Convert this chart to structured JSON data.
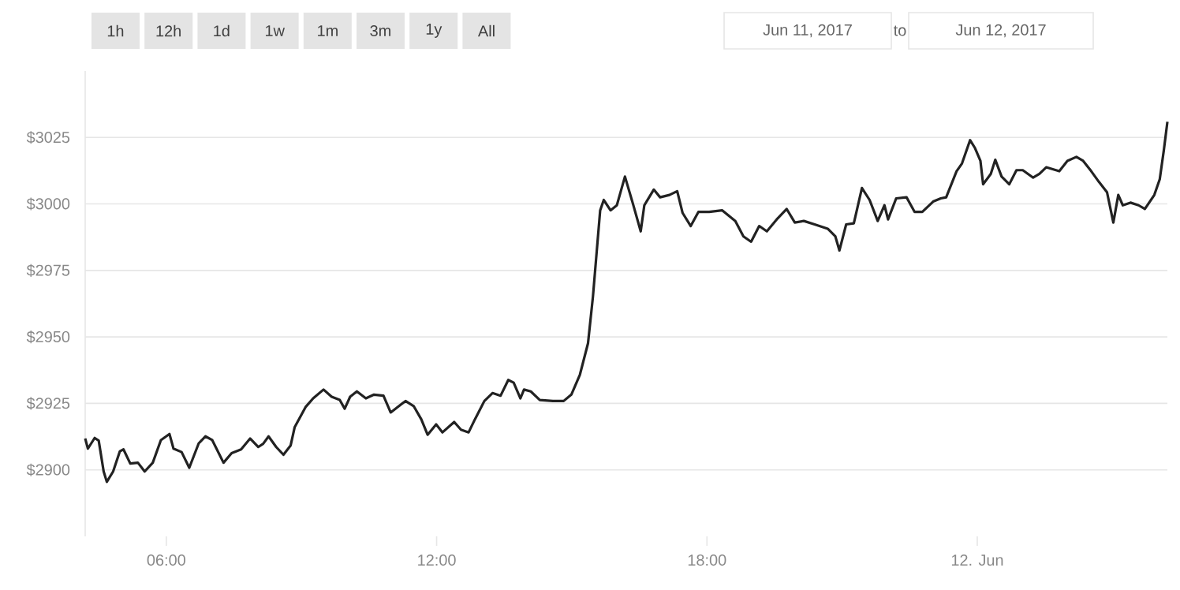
{
  "chart_data": {
    "type": "line",
    "color": "#222222",
    "x": [
      4.2,
      4.26,
      4.41,
      4.5,
      4.61,
      4.68,
      4.82,
      4.97,
      5.05,
      5.2,
      5.37,
      5.52,
      5.7,
      5.88,
      6.07,
      6.16,
      6.34,
      6.51,
      6.72,
      6.87,
      7.02,
      7.27,
      7.45,
      7.66,
      7.86,
      8.04,
      8.15,
      8.27,
      8.44,
      8.6,
      8.76,
      8.85,
      9.09,
      9.26,
      9.49,
      9.67,
      9.85,
      9.96,
      10.08,
      10.23,
      10.43,
      10.61,
      10.82,
      10.98,
      11.31,
      11.49,
      11.66,
      11.8,
      11.99,
      12.13,
      12.39,
      12.54,
      12.71,
      12.85,
      13.06,
      13.24,
      13.42,
      13.59,
      13.71,
      13.86,
      13.94,
      14.09,
      14.29,
      14.58,
      14.82,
      14.99,
      15.18,
      15.36,
      15.47,
      15.63,
      15.71,
      15.86,
      16.0,
      16.18,
      16.35,
      16.53,
      16.61,
      16.82,
      16.96,
      17.17,
      17.34,
      17.46,
      17.64,
      17.81,
      18.05,
      18.34,
      18.63,
      18.81,
      18.98,
      19.16,
      19.33,
      19.57,
      19.77,
      19.95,
      20.15,
      20.39,
      20.68,
      20.85,
      20.94,
      21.09,
      21.26,
      21.44,
      21.61,
      21.79,
      21.94,
      22.02,
      22.2,
      22.43,
      22.61,
      22.78,
      23.02,
      23.19,
      23.31,
      23.54,
      23.66,
      23.84,
      23.95,
      24.07,
      24.13,
      24.3,
      24.4,
      24.54,
      24.71,
      24.87,
      25.01,
      25.24,
      25.38,
      25.53,
      25.82,
      26.0,
      26.2,
      26.35,
      26.53,
      26.7,
      26.88,
      27.02,
      27.13,
      27.23,
      27.4,
      27.58,
      27.72,
      27.93,
      28.05,
      28.14,
      28.22
    ],
    "values": [
      2911.8,
      2908,
      2912,
      2911,
      2899.4,
      2895.5,
      2899.4,
      2907,
      2907.7,
      2902.4,
      2902.7,
      2899.4,
      2902.7,
      2911.2,
      2913.5,
      2908,
      2906.7,
      2900.8,
      2910,
      2912.6,
      2911.2,
      2902.7,
      2906.3,
      2907.7,
      2911.8,
      2908.6,
      2909.8,
      2912.6,
      2908.6,
      2905.7,
      2909.2,
      2916.1,
      2923.6,
      2926.9,
      2930.2,
      2927.5,
      2926.3,
      2923,
      2927.5,
      2929.5,
      2926.9,
      2928.3,
      2927.9,
      2921.6,
      2925.9,
      2924,
      2919,
      2913.2,
      2917.1,
      2914.1,
      2918,
      2915.1,
      2914.1,
      2919,
      2925.9,
      2928.9,
      2927.9,
      2933.8,
      2932.8,
      2926.9,
      2930.2,
      2929.5,
      2926.3,
      2925.9,
      2925.9,
      2928.3,
      2935.8,
      2947.6,
      2965.2,
      2997.6,
      3001.5,
      2997.6,
      2999.5,
      3010.3,
      3000.5,
      2989.7,
      2999.5,
      3005.4,
      3002.5,
      3003.4,
      3004.8,
      2996.6,
      2991.7,
      2997,
      2997,
      2997.6,
      2993.6,
      2987.8,
      2985.8,
      2991.7,
      2989.7,
      2994.6,
      2998.1,
      2993,
      2993.6,
      2992.3,
      2990.7,
      2987.8,
      2982.5,
      2992.3,
      2992.7,
      3006,
      3001.5,
      2993.6,
      2999.5,
      2994.2,
      3002.1,
      3002.5,
      2997,
      2997,
      3000.9,
      3002.1,
      3002.5,
      3012.3,
      3015.2,
      3024,
      3021,
      3016.2,
      3007.4,
      3011.3,
      3016.6,
      3010.3,
      3007.4,
      3012.7,
      3012.7,
      3009.9,
      3011.3,
      3013.8,
      3012.3,
      3016.2,
      3017.7,
      3016.2,
      3012.3,
      3008.3,
      3004.4,
      2993,
      3003.4,
      2999.5,
      3000.5,
      2999.5,
      2998.1,
      3003.4,
      3009.3,
      3020.1,
      3030.9
    ],
    "xlim": [
      4.2,
      28.22
    ],
    "ylim": [
      2875,
      3050
    ],
    "xticks": [
      {
        "value": 6,
        "label": "06:00"
      },
      {
        "value": 12,
        "label": "12:00"
      },
      {
        "value": 18,
        "label": "18:00"
      },
      {
        "value": 24,
        "label": "12. Jun"
      }
    ],
    "yticks": [
      {
        "value": 2900,
        "label": "$2900"
      },
      {
        "value": 2925,
        "label": "$2925"
      },
      {
        "value": 2950,
        "label": "$2950"
      },
      {
        "value": 2975,
        "label": "$2975"
      },
      {
        "value": 3000,
        "label": "$3000"
      },
      {
        "value": 3025,
        "label": "$3025"
      }
    ],
    "grid": "y",
    "marker": "none",
    "line_style": "solid",
    "annotations": [
      "1h",
      "12h",
      "1d",
      "1w",
      "1m",
      "3m",
      "1y",
      "All",
      "Jun 11, 2017",
      "to",
      "Jun 12, 2017"
    ]
  }
}
